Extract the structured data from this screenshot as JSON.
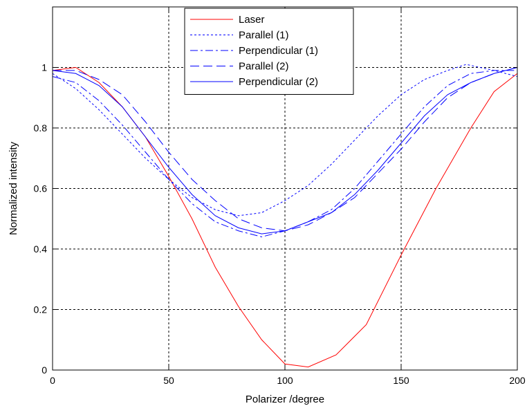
{
  "chart_data": {
    "type": "line",
    "xlabel": "Polarizer /degree",
    "ylabel": "Normalized intensity",
    "xlim": [
      0,
      200
    ],
    "ylim": [
      0,
      1.2
    ],
    "xticks": [
      0,
      50,
      100,
      150,
      200
    ],
    "yticks": [
      0,
      0.2,
      0.4,
      0.6,
      0.8,
      1
    ],
    "xtick_labels": [
      "0",
      "50",
      "100",
      "150",
      "200"
    ],
    "ytick_labels": [
      "0",
      "0.2",
      "0.4",
      "0.6",
      "0.8",
      "1"
    ],
    "grid": true,
    "legend_position": "top-center",
    "series": [
      {
        "name": "Laser",
        "color": "#ff0000",
        "style": "solid",
        "x": [
          0,
          10,
          20,
          30,
          40,
          50,
          60,
          70,
          80,
          90,
          100,
          110,
          122,
          135,
          150,
          165,
          180,
          190,
          200
        ],
        "y": [
          0.99,
          1.0,
          0.95,
          0.87,
          0.77,
          0.64,
          0.5,
          0.34,
          0.21,
          0.1,
          0.02,
          0.01,
          0.05,
          0.15,
          0.38,
          0.6,
          0.8,
          0.92,
          0.98
        ]
      },
      {
        "name": "Parallel (1)",
        "color": "#0000ff",
        "style": "dotted",
        "x": [
          0,
          10,
          20,
          30,
          40,
          50,
          60,
          70,
          80,
          90,
          100,
          110,
          120,
          130,
          140,
          150,
          160,
          170,
          178,
          190,
          200
        ],
        "y": [
          0.98,
          0.93,
          0.86,
          0.78,
          0.7,
          0.63,
          0.57,
          0.53,
          0.51,
          0.52,
          0.56,
          0.61,
          0.68,
          0.76,
          0.84,
          0.91,
          0.96,
          0.99,
          1.01,
          0.99,
          0.97
        ]
      },
      {
        "name": "Perpendicular (1)",
        "color": "#0000ff",
        "style": "dashdot",
        "x": [
          0,
          10,
          20,
          30,
          40,
          50,
          60,
          70,
          80,
          90,
          100,
          110,
          120,
          130,
          140,
          150,
          160,
          170,
          180,
          190,
          200
        ],
        "y": [
          0.97,
          0.95,
          0.89,
          0.81,
          0.72,
          0.63,
          0.55,
          0.49,
          0.46,
          0.44,
          0.46,
          0.49,
          0.53,
          0.6,
          0.69,
          0.78,
          0.87,
          0.94,
          0.98,
          0.99,
          0.99
        ]
      },
      {
        "name": "Parallel (2)",
        "color": "#0000ff",
        "style": "dashed",
        "x": [
          0,
          10,
          20,
          30,
          40,
          50,
          60,
          70,
          80,
          90,
          100,
          110,
          120,
          130,
          140,
          150,
          160,
          170,
          180,
          190,
          200
        ],
        "y": [
          0.99,
          0.99,
          0.96,
          0.91,
          0.82,
          0.72,
          0.63,
          0.56,
          0.5,
          0.47,
          0.46,
          0.48,
          0.52,
          0.57,
          0.65,
          0.73,
          0.82,
          0.9,
          0.95,
          0.98,
          1.0
        ]
      },
      {
        "name": "Perpendicular (2)",
        "color": "#0000ff",
        "style": "solid",
        "x": [
          0,
          10,
          20,
          30,
          40,
          50,
          60,
          70,
          80,
          90,
          100,
          110,
          120,
          130,
          140,
          150,
          160,
          170,
          180,
          190,
          200
        ],
        "y": [
          0.99,
          0.98,
          0.94,
          0.87,
          0.77,
          0.67,
          0.58,
          0.51,
          0.47,
          0.45,
          0.46,
          0.49,
          0.52,
          0.58,
          0.66,
          0.75,
          0.84,
          0.91,
          0.95,
          0.98,
          1.0
        ]
      }
    ]
  }
}
